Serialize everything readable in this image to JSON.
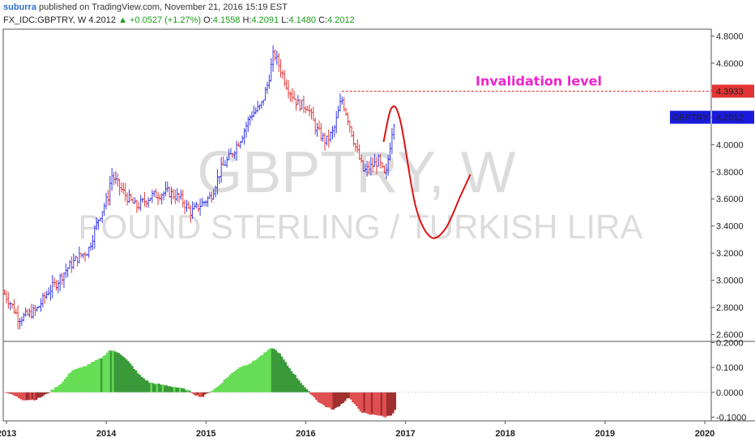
{
  "header": {
    "author": "suburra",
    "published": "published on TradingView.com, November 21, 2016 15:19 EST"
  },
  "ohlc": {
    "symbol": "FX_IDC:GBPTRY, W",
    "last": "4.2012",
    "change": "▲ +0.0527 (+1.27%)",
    "o_label": "O:",
    "o": "4.1558",
    "h_label": "H:",
    "h": "4.2091",
    "l_label": "L:",
    "l": "4.1480",
    "c_label": "C:",
    "c": "4.2012"
  },
  "watermark": {
    "symbol": "GBPTRY, W",
    "description": "POUND STERLING / TURKISH LIRA"
  },
  "annotation": {
    "text": "Invalidation level",
    "level": 4.3933,
    "level_label": "4.3933",
    "color": "#ee22cc"
  },
  "price_badge": {
    "symbol": "GBPTRY",
    "value": "4.2012",
    "price": 4.2012
  },
  "colors": {
    "up": "#3a3ae8",
    "down": "#e23a3a",
    "osc_up": "#66dd55",
    "osc_up_dark": "#3a9a3a",
    "osc_down": "#e05050",
    "osc_down_dark": "#a03030",
    "level": "#e33333",
    "projection": "#dd1111",
    "badge": "#1a1adc"
  },
  "chart_data": [
    {
      "type": "bar",
      "subtype": "ohlc-weekly",
      "symbol": "GBPTRY",
      "ylim": [
        2.55,
        4.85
      ],
      "yticks": [
        4.8,
        4.6,
        4.4,
        4.2,
        4.0,
        3.8,
        3.6,
        3.4,
        3.2,
        3.0,
        2.8,
        2.6
      ],
      "ytick_labels": [
        "4.8000",
        "4.6000",
        "4.4000",
        "4.2000",
        "4.0000",
        "3.8000",
        "3.6000",
        "3.4000",
        "3.2000",
        "3.0000",
        "2.8000",
        "2.6000"
      ],
      "xticks": [
        "2013",
        "2014",
        "2015",
        "2016",
        "2017",
        "2018",
        "2019",
        "2020"
      ],
      "xtick_years": [
        2013,
        2014,
        2015,
        2016,
        2017,
        2018,
        2019,
        2020
      ],
      "x_start": 2012.98,
      "x_end": 2020.1,
      "series_points": [
        [
          2012.98,
          2.9
        ],
        [
          2013.05,
          2.82
        ],
        [
          2013.12,
          2.72
        ],
        [
          2013.2,
          2.74
        ],
        [
          2013.3,
          2.78
        ],
        [
          2013.42,
          2.92
        ],
        [
          2013.5,
          2.98
        ],
        [
          2013.6,
          3.08
        ],
        [
          2013.72,
          3.17
        ],
        [
          2013.82,
          3.22
        ],
        [
          2013.92,
          3.45
        ],
        [
          2014.02,
          3.62
        ],
        [
          2014.05,
          3.78
        ],
        [
          2014.12,
          3.7
        ],
        [
          2014.2,
          3.62
        ],
        [
          2014.3,
          3.54
        ],
        [
          2014.45,
          3.62
        ],
        [
          2014.62,
          3.65
        ],
        [
          2014.75,
          3.6
        ],
        [
          2014.85,
          3.5
        ],
        [
          2014.95,
          3.56
        ],
        [
          2015.05,
          3.62
        ],
        [
          2015.15,
          3.82
        ],
        [
          2015.25,
          3.92
        ],
        [
          2015.35,
          4.05
        ],
        [
          2015.45,
          4.22
        ],
        [
          2015.55,
          4.28
        ],
        [
          2015.62,
          4.45
        ],
        [
          2015.68,
          4.68
        ],
        [
          2015.75,
          4.55
        ],
        [
          2015.82,
          4.42
        ],
        [
          2015.92,
          4.3
        ],
        [
          2016.02,
          4.28
        ],
        [
          2016.1,
          4.12
        ],
        [
          2016.2,
          4.02
        ],
        [
          2016.28,
          4.1
        ],
        [
          2016.36,
          4.34
        ],
        [
          2016.42,
          4.2
        ],
        [
          2016.5,
          3.98
        ],
        [
          2016.58,
          3.8
        ],
        [
          2016.66,
          3.84
        ],
        [
          2016.73,
          3.88
        ],
        [
          2016.8,
          3.75
        ],
        [
          2016.86,
          4.08
        ],
        [
          2016.89,
          4.2
        ]
      ],
      "projection": [
        [
          2016.78,
          4.02
        ],
        [
          2016.86,
          4.27
        ],
        [
          2016.95,
          4.17
        ],
        [
          2017.1,
          3.55
        ],
        [
          2017.25,
          3.32
        ],
        [
          2017.4,
          3.38
        ],
        [
          2017.55,
          3.62
        ],
        [
          2017.65,
          3.78
        ]
      ]
    },
    {
      "type": "bar",
      "subtype": "oscillator",
      "ylim": [
        -0.115,
        0.205
      ],
      "yticks": [
        0.2,
        0.1,
        0.0,
        -0.1
      ],
      "ytick_labels": [
        "0.2000",
        "0.1000",
        "0.0000",
        "-0.1000"
      ],
      "envelope": [
        [
          2012.98,
          0.0
        ],
        [
          2013.05,
          -0.01
        ],
        [
          2013.15,
          -0.03
        ],
        [
          2013.28,
          -0.03
        ],
        [
          2013.38,
          -0.01
        ],
        [
          2013.45,
          0.01
        ],
        [
          2013.55,
          0.04
        ],
        [
          2013.65,
          0.09
        ],
        [
          2013.75,
          0.1
        ],
        [
          2013.85,
          0.12
        ],
        [
          2013.95,
          0.14
        ],
        [
          2014.02,
          0.17
        ],
        [
          2014.12,
          0.16
        ],
        [
          2014.22,
          0.12
        ],
        [
          2014.32,
          0.07
        ],
        [
          2014.42,
          0.04
        ],
        [
          2014.55,
          0.03
        ],
        [
          2014.7,
          0.02
        ],
        [
          2014.8,
          0.01
        ],
        [
          2014.88,
          -0.01
        ],
        [
          2014.95,
          -0.02
        ],
        [
          2015.02,
          0.0
        ],
        [
          2015.1,
          0.02
        ],
        [
          2015.2,
          0.06
        ],
        [
          2015.32,
          0.1
        ],
        [
          2015.45,
          0.12
        ],
        [
          2015.55,
          0.15
        ],
        [
          2015.65,
          0.18
        ],
        [
          2015.72,
          0.16
        ],
        [
          2015.82,
          0.1
        ],
        [
          2015.92,
          0.05
        ],
        [
          2016.0,
          0.01
        ],
        [
          2016.05,
          -0.01
        ],
        [
          2016.12,
          -0.04
        ],
        [
          2016.2,
          -0.06
        ],
        [
          2016.27,
          -0.07
        ],
        [
          2016.34,
          -0.05
        ],
        [
          2016.42,
          -0.02
        ],
        [
          2016.48,
          -0.05
        ],
        [
          2016.55,
          -0.08
        ],
        [
          2016.62,
          -0.09
        ],
        [
          2016.7,
          -0.09
        ],
        [
          2016.78,
          -0.1
        ],
        [
          2016.85,
          -0.09
        ],
        [
          2016.89,
          -0.07
        ]
      ]
    }
  ]
}
